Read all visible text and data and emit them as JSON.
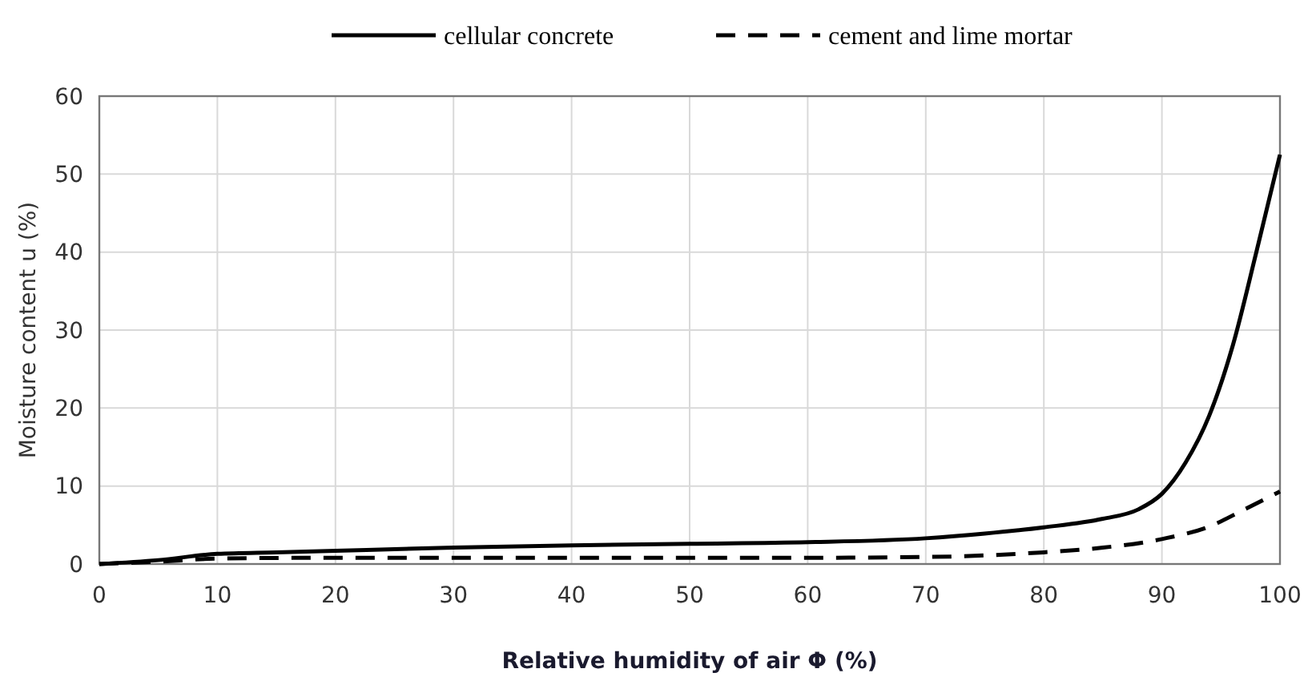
{
  "chart_data": {
    "type": "line",
    "xlabel": "Relative humidity of air Φ (%)",
    "ylabel": "Moisture content u (%)",
    "xlim": [
      0,
      100
    ],
    "xticks": [
      0,
      10,
      20,
      30,
      40,
      50,
      60,
      70,
      80,
      90,
      100
    ],
    "ylim": [
      0,
      60
    ],
    "yticks": [
      0,
      10,
      20,
      30,
      40,
      50,
      60
    ],
    "grid": true,
    "legend": "top",
    "marker": "none",
    "series": [
      {
        "name": "cellular concrete",
        "color": "#000000",
        "line_style": "solid",
        "x": [
          0,
          5,
          10,
          15,
          20,
          30,
          40,
          50,
          60,
          70,
          75,
          80,
          85,
          88,
          90,
          92,
          94,
          96,
          98,
          100
        ],
        "values": [
          0,
          0.5,
          1.3,
          1.5,
          1.7,
          2.1,
          2.4,
          2.6,
          2.8,
          3.3,
          3.9,
          4.7,
          5.8,
          7,
          9,
          13,
          19,
          28,
          40,
          52.5
        ]
      },
      {
        "name": "cement and lime mortar",
        "color": "#000000",
        "line_style": "dashed",
        "x": [
          0,
          5,
          10,
          20,
          30,
          40,
          50,
          60,
          70,
          75,
          80,
          85,
          90,
          94,
          97,
          100
        ],
        "values": [
          0,
          0.3,
          0.7,
          0.8,
          0.8,
          0.8,
          0.8,
          0.8,
          0.9,
          1.1,
          1.5,
          2.1,
          3.2,
          4.8,
          7,
          9.3
        ]
      }
    ]
  }
}
